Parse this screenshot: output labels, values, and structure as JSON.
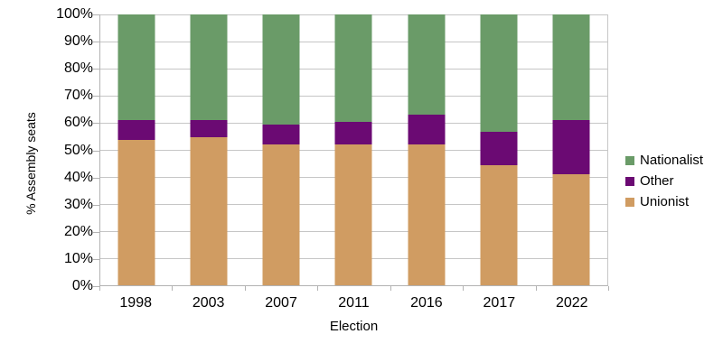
{
  "chart_data": {
    "type": "bar",
    "stacked": true,
    "title": "",
    "xlabel": "Election",
    "ylabel": "% Assembly seats",
    "categories": [
      "1998",
      "2003",
      "2007",
      "2011",
      "2016",
      "2017",
      "2022"
    ],
    "series": [
      {
        "name": "Unionist",
        "color": "#d09c62",
        "values": [
          53.7,
          54.6,
          51.9,
          51.9,
          51.9,
          44.4,
          41.1
        ]
      },
      {
        "name": "Other",
        "color": "#6b0a73",
        "values": [
          7.4,
          6.5,
          7.4,
          8.3,
          11.1,
          12.2,
          20.0
        ]
      },
      {
        "name": "Nationalist",
        "color": "#6a9b68",
        "values": [
          38.9,
          38.9,
          40.7,
          39.8,
          37.0,
          43.3,
          38.9
        ]
      }
    ],
    "legend": [
      "Nationalist",
      "Other",
      "Unionist"
    ],
    "legend_position": "right",
    "y_ticks": [
      "100%",
      "90%",
      "80%",
      "70%",
      "60%",
      "50%",
      "40%",
      "30%",
      "20%",
      "10%",
      "0%"
    ],
    "ylim": [
      0,
      100
    ],
    "grid": true,
    "colors": {
      "gridline": "#c6c6c6",
      "axis": "#b3b3b3",
      "background": "#ffffff",
      "text": "#000000"
    }
  }
}
